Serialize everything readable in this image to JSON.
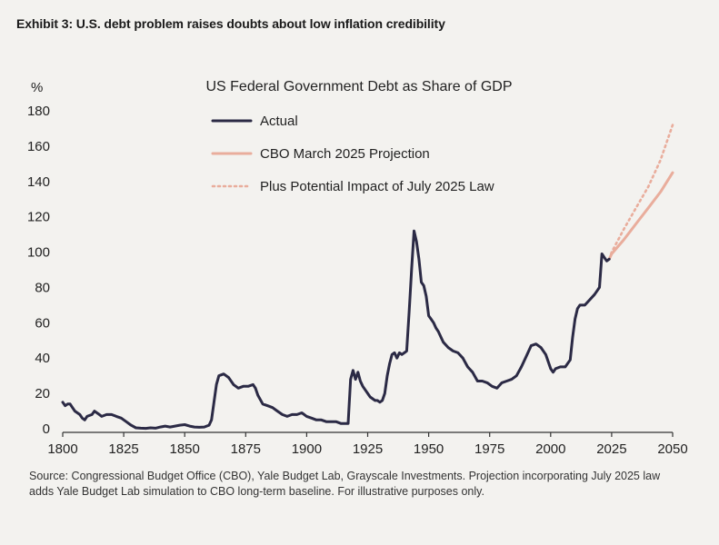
{
  "exhibit_title": "Exhibit 3: U.S. debt problem raises doubts about low inflation credibility",
  "source_note": "Source: Congressional Budget Office (CBO), Yale Budget Lab, Grayscale Investments. Projection incorporating July 2025 law adds Yale Budget Lab simulation to CBO long-term baseline. For illustrative purposes only.",
  "colors": {
    "actual": "#2b2a45",
    "projection": "#e9ad9c",
    "axis": "#333333",
    "background": "#f3f2ef"
  },
  "chart_data": {
    "type": "line",
    "title": "US Federal Government Debt as Share of GDP",
    "ylabel": "%",
    "xlabel": "",
    "xlim": [
      1800,
      2050
    ],
    "ylim": [
      0,
      180
    ],
    "x_ticks": [
      1800,
      1825,
      1850,
      1875,
      1900,
      1925,
      1950,
      1975,
      2000,
      2025,
      2050
    ],
    "y_ticks": [
      0,
      20,
      40,
      60,
      80,
      100,
      120,
      140,
      160,
      180
    ],
    "grid": false,
    "legend_position": "top-left",
    "series": [
      {
        "name": "Actual",
        "style": "solid",
        "x": [
          1800,
          1801,
          1802,
          1803,
          1804,
          1805,
          1806,
          1807,
          1808,
          1809,
          1810,
          1812,
          1813,
          1815,
          1816,
          1818,
          1820,
          1822,
          1824,
          1826,
          1828,
          1830,
          1832,
          1834,
          1836,
          1838,
          1840,
          1842,
          1844,
          1846,
          1848,
          1850,
          1852,
          1854,
          1856,
          1858,
          1860,
          1861,
          1862,
          1863,
          1864,
          1866,
          1868,
          1870,
          1872,
          1874,
          1876,
          1878,
          1879,
          1880,
          1882,
          1884,
          1886,
          1888,
          1890,
          1892,
          1894,
          1896,
          1898,
          1899,
          1900,
          1902,
          1904,
          1906,
          1908,
          1910,
          1912,
          1914,
          1916,
          1917,
          1918,
          1919,
          1920,
          1921,
          1922,
          1923,
          1924,
          1926,
          1928,
          1929,
          1930,
          1931,
          1932,
          1933,
          1934,
          1935,
          1936,
          1937,
          1938,
          1939,
          1940,
          1941,
          1942,
          1943,
          1944,
          1945,
          1946,
          1947,
          1948,
          1949,
          1950,
          1951,
          1952,
          1953,
          1954,
          1956,
          1958,
          1960,
          1962,
          1964,
          1966,
          1968,
          1970,
          1972,
          1974,
          1976,
          1978,
          1980,
          1982,
          1984,
          1986,
          1988,
          1990,
          1992,
          1994,
          1996,
          1998,
          2000,
          2001,
          2002,
          2004,
          2006,
          2008,
          2009,
          2010,
          2011,
          2012,
          2014,
          2016,
          2018,
          2019,
          2020,
          2021,
          2022,
          2023,
          2024
        ],
        "values": [
          15,
          13,
          14,
          14,
          12,
          10,
          9,
          8,
          6,
          5,
          7,
          8,
          10,
          8,
          7,
          8,
          8,
          7,
          6,
          4,
          2,
          0.5,
          0.3,
          0.2,
          0.5,
          0.3,
          1,
          1.5,
          1,
          1.5,
          2,
          2.3,
          1.5,
          1,
          0.8,
          1,
          2,
          5,
          15,
          25,
          30,
          31,
          29,
          25,
          23,
          24,
          24,
          25,
          23,
          19,
          14,
          13,
          12,
          10,
          8,
          7,
          8,
          8,
          9,
          8,
          7,
          6,
          5,
          5,
          4,
          4,
          4,
          3,
          3,
          3,
          28,
          33,
          28,
          32,
          27,
          24,
          22,
          18,
          16,
          16,
          15,
          16,
          20,
          30,
          37,
          42,
          43,
          40,
          43,
          42,
          43,
          44,
          66,
          90,
          112,
          106,
          96,
          83,
          81,
          75,
          64,
          62,
          60,
          57,
          55,
          49,
          46,
          44,
          43,
          40,
          35,
          32,
          27,
          27,
          26,
          24,
          23,
          26,
          27,
          28,
          30,
          35,
          41,
          47,
          48,
          46,
          42,
          34,
          32,
          34,
          35,
          35,
          39,
          52,
          62,
          68,
          70,
          70,
          73,
          76,
          78,
          80,
          99,
          97,
          95,
          96
        ]
      },
      {
        "name": "CBO March 2025 Projection",
        "style": "solid",
        "x": [
          2024,
          2025,
          2030,
          2035,
          2040,
          2045,
          2050
        ],
        "values": [
          96,
          99,
          107,
          116,
          125,
          134,
          145
        ]
      },
      {
        "name": "Plus Potential Impact of July 2025 Law",
        "style": "dotted",
        "x": [
          2024,
          2025,
          2030,
          2035,
          2040,
          2045,
          2050
        ],
        "values": [
          96,
          100,
          113,
          125,
          137,
          152,
          172
        ]
      }
    ]
  }
}
